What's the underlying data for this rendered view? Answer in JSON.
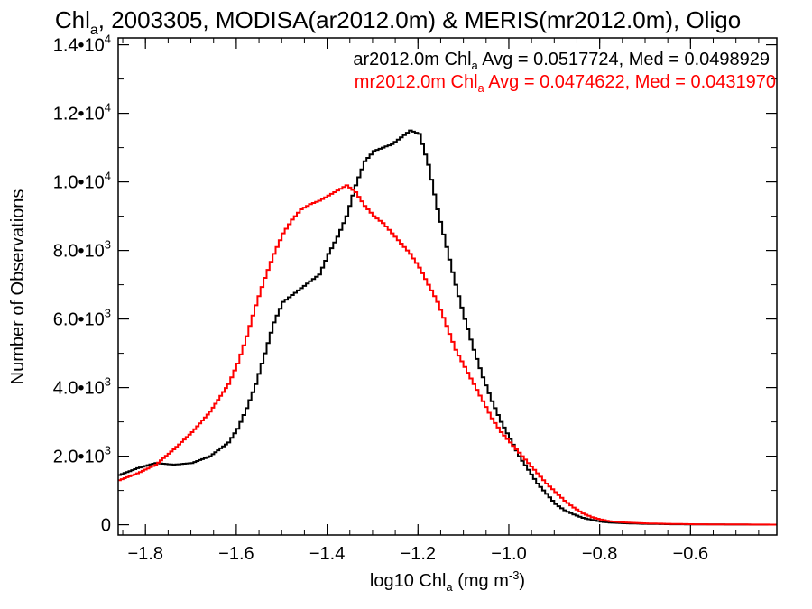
{
  "chart_data": {
    "type": "line",
    "title": {
      "pre": "Chl",
      "sub": "a",
      "post": ", 2003305, MODISA(ar2012.0m) & MERIS(mr2012.0m), Oligo"
    },
    "xlabel": {
      "pre": "log10 Chl",
      "sub": "a",
      "mid": " (mg m",
      "sup": "-3",
      "post": ")"
    },
    "ylabel": "Number of Observations",
    "xlim": [
      -1.86,
      -0.41
    ],
    "ylim": [
      -300,
      14200
    ],
    "x_ticks": [
      {
        "value": -1.8,
        "label": "−1.8"
      },
      {
        "value": -1.6,
        "label": "−1.6"
      },
      {
        "value": -1.4,
        "label": "−1.4"
      },
      {
        "value": -1.2,
        "label": "−1.2"
      },
      {
        "value": -1.0,
        "label": "−1.0"
      },
      {
        "value": -0.8,
        "label": "−0.8"
      },
      {
        "value": -0.6,
        "label": "−0.6"
      }
    ],
    "y_ticks": [
      {
        "value": 0,
        "mant": "0",
        "exp": ""
      },
      {
        "value": 2000,
        "mant": "2.0•10",
        "exp": "3"
      },
      {
        "value": 4000,
        "mant": "4.0•10",
        "exp": "3"
      },
      {
        "value": 6000,
        "mant": "6.0•10",
        "exp": "3"
      },
      {
        "value": 8000,
        "mant": "8.0•10",
        "exp": "3"
      },
      {
        "value": 10000,
        "mant": "1.0•10",
        "exp": "4"
      },
      {
        "value": 12000,
        "mant": "1.2•10",
        "exp": "4"
      },
      {
        "value": 14000,
        "mant": "1.4•10",
        "exp": "4"
      }
    ],
    "legend": [
      {
        "pre": "ar2012.0m Chl",
        "sub": "a",
        "post": " Avg = 0.0517724, Med = 0.0498929",
        "color": "#000000"
      },
      {
        "pre": "mr2012.0m Chl",
        "sub": "a",
        "post": " Avg = 0.0474622, Med = 0.0431970",
        "color": "#ff0000"
      }
    ],
    "series": [
      {
        "color": "#000000",
        "x": [
          -1.86,
          -1.82,
          -1.78,
          -1.74,
          -1.7,
          -1.66,
          -1.62,
          -1.6,
          -1.58,
          -1.56,
          -1.54,
          -1.52,
          -1.5,
          -1.48,
          -1.46,
          -1.44,
          -1.42,
          -1.4,
          -1.38,
          -1.36,
          -1.34,
          -1.32,
          -1.3,
          -1.28,
          -1.26,
          -1.24,
          -1.22,
          -1.2,
          -1.18,
          -1.16,
          -1.14,
          -1.12,
          -1.1,
          -1.08,
          -1.06,
          -1.04,
          -1.02,
          -1.0,
          -0.98,
          -0.96,
          -0.94,
          -0.92,
          -0.9,
          -0.88,
          -0.86,
          -0.84,
          -0.82,
          -0.8,
          -0.78,
          -0.74,
          -0.7,
          -0.65,
          -0.6,
          -0.55,
          -0.5,
          -0.45,
          -0.41
        ],
        "y": [
          1450,
          1650,
          1800,
          1750,
          1800,
          2000,
          2400,
          2800,
          3400,
          4100,
          5000,
          5900,
          6500,
          6700,
          6900,
          7100,
          7300,
          7900,
          8400,
          9000,
          9900,
          10600,
          10900,
          11000,
          11100,
          11300,
          11500,
          11400,
          10500,
          9200,
          8100,
          7000,
          6000,
          5100,
          4300,
          3600,
          3000,
          2500,
          2000,
          1600,
          1200,
          900,
          600,
          420,
          300,
          200,
          140,
          90,
          60,
          40,
          25,
          15,
          10,
          8,
          5,
          3,
          2
        ]
      },
      {
        "color": "#ff0000",
        "x": [
          -1.86,
          -1.82,
          -1.78,
          -1.74,
          -1.7,
          -1.66,
          -1.62,
          -1.6,
          -1.58,
          -1.56,
          -1.54,
          -1.52,
          -1.5,
          -1.48,
          -1.46,
          -1.44,
          -1.42,
          -1.4,
          -1.38,
          -1.36,
          -1.34,
          -1.32,
          -1.3,
          -1.28,
          -1.26,
          -1.24,
          -1.22,
          -1.2,
          -1.18,
          -1.16,
          -1.14,
          -1.12,
          -1.1,
          -1.08,
          -1.06,
          -1.04,
          -1.02,
          -1.0,
          -0.98,
          -0.96,
          -0.94,
          -0.92,
          -0.9,
          -0.88,
          -0.86,
          -0.84,
          -0.82,
          -0.8,
          -0.78,
          -0.74,
          -0.7,
          -0.65,
          -0.6,
          -0.55,
          -0.5,
          -0.45,
          -0.41
        ],
        "y": [
          1300,
          1500,
          1750,
          2200,
          2700,
          3300,
          4100,
          4700,
          5500,
          6400,
          7200,
          7900,
          8500,
          8900,
          9200,
          9350,
          9450,
          9600,
          9750,
          9900,
          9700,
          9300,
          9000,
          8800,
          8500,
          8200,
          7900,
          7500,
          7000,
          6500,
          5800,
          5100,
          4600,
          4100,
          3600,
          3100,
          2700,
          2400,
          2100,
          1800,
          1500,
          1200,
          950,
          700,
          500,
          330,
          220,
          150,
          100,
          60,
          40,
          25,
          15,
          10,
          8,
          5,
          3
        ]
      }
    ]
  }
}
